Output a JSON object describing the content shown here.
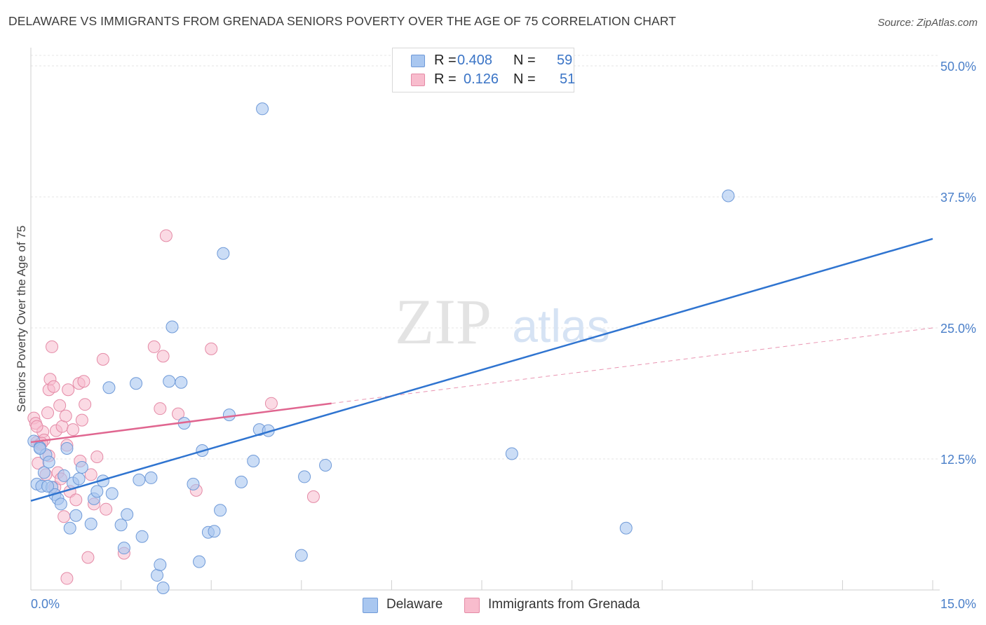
{
  "header": {
    "title": "DELAWARE VS IMMIGRANTS FROM GRENADA SENIORS POVERTY OVER THE AGE OF 75 CORRELATION CHART",
    "source": "Source: ZipAtlas.com"
  },
  "watermark": {
    "zip": "ZIP",
    "atlas": "atlas"
  },
  "legend": {
    "rows": [
      {
        "r_label": "R =",
        "r_value": "0.408",
        "n_label": "N =",
        "n_value": "59"
      },
      {
        "r_label": "R =",
        "r_value": "0.126",
        "n_label": "N =",
        "n_value": "51"
      }
    ]
  },
  "bottom_legend": {
    "delaware": "Delaware",
    "grenada": "Immigrants from Grenada"
  },
  "axis": {
    "ylabel": "Seniors Poverty Over the Age of 75",
    "x_min_label": "0.0%",
    "x_max_label": "15.0%",
    "y_ticks": [
      "50.0%",
      "37.5%",
      "25.0%",
      "12.5%"
    ]
  },
  "chart_data": {
    "type": "scatter",
    "title": "DELAWARE VS IMMIGRANTS FROM GRENADA SENIORS POVERTY OVER THE AGE OF 75 CORRELATION CHART",
    "xlabel": "",
    "ylabel": "Seniors Poverty Over the Age of 75",
    "xlim": [
      0,
      15
    ],
    "ylim": [
      0,
      51
    ],
    "y_ticks": [
      12.5,
      25.0,
      37.5,
      50.0
    ],
    "grid": true,
    "legend_position": "top-center",
    "colors": {
      "delaware_fill": "#a9c7f0",
      "delaware_stroke": "#6f9ad8",
      "delaware_line": "#2f74d0",
      "grenada_fill": "#f8bccd",
      "grenada_stroke": "#e48aa6",
      "grenada_line": "#e06690"
    },
    "series": [
      {
        "name": "Delaware",
        "r": 0.408,
        "n": 59,
        "trend": {
          "x": [
            0,
            15
          ],
          "y": [
            8.5,
            33.5
          ]
        },
        "points": [
          [
            0.05,
            14.2
          ],
          [
            0.1,
            10.1
          ],
          [
            0.15,
            13.6
          ],
          [
            0.18,
            9.9
          ],
          [
            0.22,
            11.2
          ],
          [
            0.25,
            12.9
          ],
          [
            0.3,
            12.2
          ],
          [
            0.35,
            9.8
          ],
          [
            0.4,
            9.1
          ],
          [
            0.45,
            8.7
          ],
          [
            0.5,
            8.2
          ],
          [
            0.55,
            10.9
          ],
          [
            0.6,
            13.5
          ],
          [
            0.65,
            5.9
          ],
          [
            0.7,
            10.2
          ],
          [
            0.75,
            7.1
          ],
          [
            0.8,
            10.6
          ],
          [
            0.85,
            11.7
          ],
          [
            1.0,
            6.3
          ],
          [
            1.05,
            8.7
          ],
          [
            1.1,
            9.4
          ],
          [
            1.2,
            10.4
          ],
          [
            1.3,
            19.3
          ],
          [
            1.35,
            9.2
          ],
          [
            1.5,
            6.2
          ],
          [
            1.55,
            4.0
          ],
          [
            1.6,
            7.2
          ],
          [
            1.75,
            19.7
          ],
          [
            1.8,
            10.5
          ],
          [
            1.85,
            5.1
          ],
          [
            2.0,
            10.7
          ],
          [
            2.1,
            1.4
          ],
          [
            2.15,
            2.4
          ],
          [
            2.2,
            0.2
          ],
          [
            2.3,
            19.9
          ],
          [
            2.35,
            25.1
          ],
          [
            2.5,
            19.8
          ],
          [
            2.55,
            15.9
          ],
          [
            2.7,
            10.1
          ],
          [
            2.8,
            2.7
          ],
          [
            2.85,
            13.3
          ],
          [
            2.95,
            5.5
          ],
          [
            3.05,
            5.6
          ],
          [
            3.15,
            7.6
          ],
          [
            3.2,
            32.1
          ],
          [
            3.3,
            16.7
          ],
          [
            3.5,
            10.3
          ],
          [
            3.7,
            12.3
          ],
          [
            3.8,
            15.3
          ],
          [
            3.85,
            45.9
          ],
          [
            3.95,
            15.2
          ],
          [
            4.5,
            3.3
          ],
          [
            4.55,
            10.8
          ],
          [
            4.9,
            11.9
          ],
          [
            8.0,
            13.0
          ],
          [
            9.9,
            5.9
          ],
          [
            11.6,
            37.6
          ],
          [
            0.15,
            13.5
          ],
          [
            0.28,
            9.9
          ]
        ]
      },
      {
        "name": "Immigrants from Grenada",
        "r": 0.126,
        "n": 51,
        "trend_solid": {
          "x": [
            0,
            5.0
          ],
          "y": [
            14.1,
            17.8
          ]
        },
        "trend_dashed": {
          "x": [
            5.0,
            15
          ],
          "y": [
            17.8,
            25.0
          ]
        },
        "points": [
          [
            0.05,
            16.4
          ],
          [
            0.08,
            15.9
          ],
          [
            0.1,
            14.1
          ],
          [
            0.12,
            12.1
          ],
          [
            0.15,
            13.9
          ],
          [
            0.2,
            15.1
          ],
          [
            0.22,
            14.3
          ],
          [
            0.25,
            11.0
          ],
          [
            0.28,
            16.9
          ],
          [
            0.3,
            19.1
          ],
          [
            0.32,
            20.1
          ],
          [
            0.35,
            23.2
          ],
          [
            0.38,
            19.4
          ],
          [
            0.4,
            9.8
          ],
          [
            0.42,
            15.2
          ],
          [
            0.45,
            11.2
          ],
          [
            0.48,
            17.6
          ],
          [
            0.5,
            10.6
          ],
          [
            0.52,
            15.6
          ],
          [
            0.55,
            7.0
          ],
          [
            0.58,
            16.6
          ],
          [
            0.6,
            13.8
          ],
          [
            0.62,
            19.1
          ],
          [
            0.65,
            9.4
          ],
          [
            0.7,
            15.3
          ],
          [
            0.75,
            8.6
          ],
          [
            0.8,
            19.7
          ],
          [
            0.82,
            12.3
          ],
          [
            0.85,
            16.2
          ],
          [
            0.88,
            19.9
          ],
          [
            0.9,
            17.7
          ],
          [
            0.95,
            3.1
          ],
          [
            1.0,
            11.0
          ],
          [
            1.05,
            8.2
          ],
          [
            1.1,
            12.7
          ],
          [
            1.2,
            22.0
          ],
          [
            1.25,
            7.7
          ],
          [
            1.55,
            3.5
          ],
          [
            2.05,
            23.2
          ],
          [
            2.15,
            17.3
          ],
          [
            2.2,
            22.3
          ],
          [
            2.25,
            33.8
          ],
          [
            2.45,
            16.8
          ],
          [
            2.75,
            9.5
          ],
          [
            3.0,
            23.0
          ],
          [
            4.0,
            17.8
          ],
          [
            4.7,
            8.9
          ],
          [
            0.6,
            1.1
          ],
          [
            0.1,
            15.6
          ],
          [
            0.3,
            12.8
          ],
          [
            0.18,
            14.0
          ]
        ]
      }
    ]
  }
}
